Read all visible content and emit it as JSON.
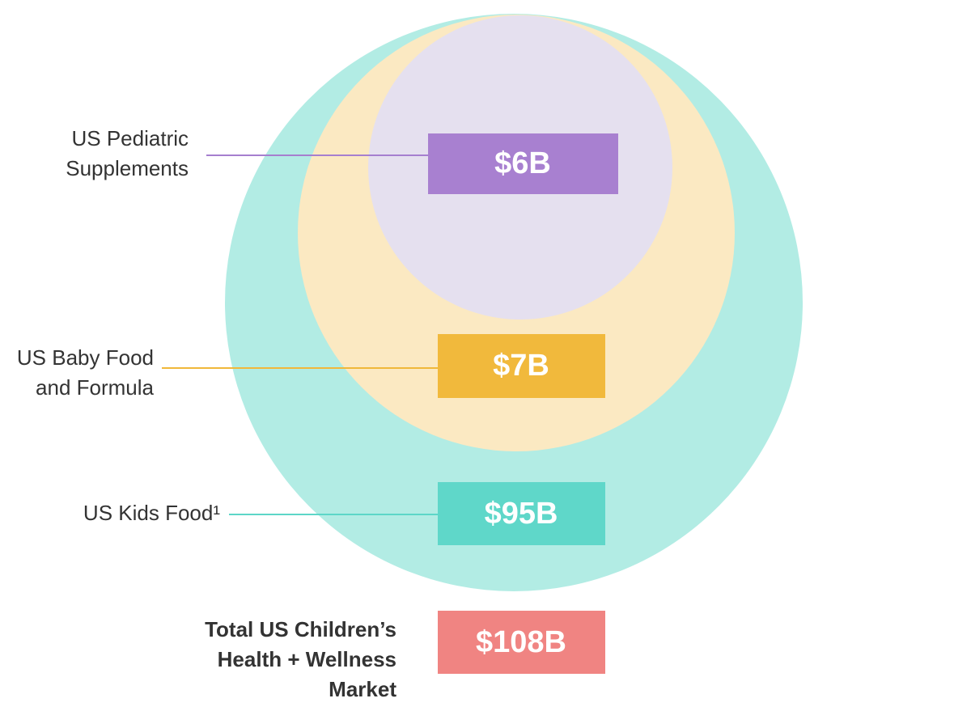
{
  "segments": [
    {
      "label": [
        "US Pediatric",
        "Supplements"
      ],
      "value": "$6B"
    },
    {
      "label": [
        "US Baby Food",
        "and Formula"
      ],
      "value": "$7B"
    },
    {
      "label": [
        "US Kids Food¹"
      ],
      "value": "$95B"
    },
    {
      "label": [
        "Total US Children’s",
        "Health + Wellness",
        "Market"
      ],
      "value": "$108B"
    }
  ]
}
